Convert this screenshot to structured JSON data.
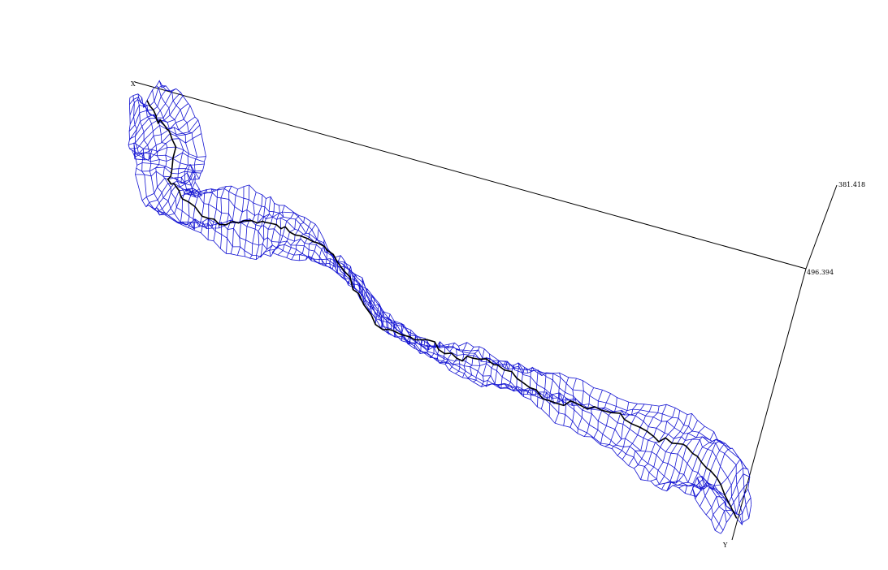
{
  "labels": {
    "z_top": "381.418",
    "z_mid": "496.394",
    "x_axis": "X",
    "y_axis": "Y"
  },
  "colors": {
    "background": "#ffffff",
    "mesh": "#1414d2",
    "centerline": "#000000",
    "axes": "#000000"
  }
}
